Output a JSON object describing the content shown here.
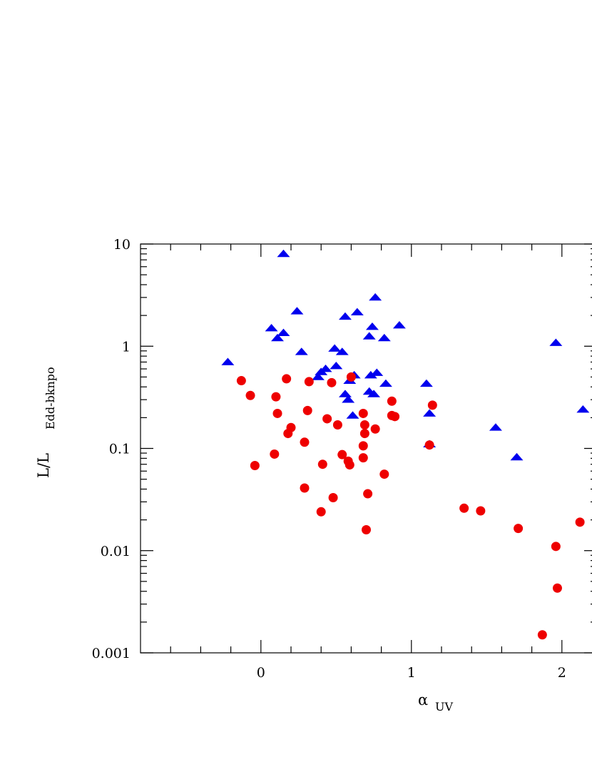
{
  "chart_data": {
    "type": "scatter",
    "xlabel": {
      "main": "α",
      "sub": "UV"
    },
    "ylabel": {
      "main": "L/L",
      "sub": "Edd-bknpo"
    },
    "xlim": [
      -0.8,
      2.2
    ],
    "ylim": [
      0.001,
      10
    ],
    "yscale": "log",
    "x_ticks": [
      0,
      1,
      2
    ],
    "x_tick_labels": [
      "0",
      "1",
      "2"
    ],
    "y_ticks": [
      0.001,
      0.01,
      0.1,
      1,
      10
    ],
    "y_tick_labels": [
      "0.001",
      "0.01",
      "0.1",
      "1",
      "10"
    ],
    "grid": false,
    "colors": {
      "series_triangles": "#0000ee",
      "series_circles": "#ee0000"
    },
    "series": [
      {
        "marker": "triangle",
        "color": "#0000ee",
        "points": [
          [
            0.15,
            8.0
          ],
          [
            -0.22,
            0.7
          ],
          [
            0.07,
            1.5
          ],
          [
            0.11,
            1.2
          ],
          [
            0.15,
            1.35
          ],
          [
            0.24,
            2.2
          ],
          [
            0.27,
            0.88
          ],
          [
            0.38,
            0.5
          ],
          [
            0.4,
            0.56
          ],
          [
            0.43,
            0.6
          ],
          [
            0.49,
            0.95
          ],
          [
            0.5,
            0.64
          ],
          [
            0.54,
            0.88
          ],
          [
            0.56,
            1.95
          ],
          [
            0.56,
            0.34
          ],
          [
            0.58,
            0.3
          ],
          [
            0.59,
            0.46
          ],
          [
            0.61,
            0.21
          ],
          [
            0.62,
            0.52
          ],
          [
            0.64,
            2.15
          ],
          [
            0.72,
            1.25
          ],
          [
            0.72,
            0.36
          ],
          [
            0.73,
            0.52
          ],
          [
            0.74,
            1.55
          ],
          [
            0.75,
            0.34
          ],
          [
            0.76,
            3.0
          ],
          [
            0.77,
            0.55
          ],
          [
            0.82,
            1.2
          ],
          [
            0.83,
            0.43
          ],
          [
            0.92,
            1.6
          ],
          [
            1.1,
            0.43
          ],
          [
            1.12,
            0.22
          ],
          [
            1.12,
            0.11
          ],
          [
            1.56,
            0.16
          ],
          [
            1.7,
            0.082
          ],
          [
            1.96,
            1.08
          ],
          [
            2.14,
            0.24
          ]
        ]
      },
      {
        "marker": "circle",
        "color": "#ee0000",
        "points": [
          [
            -0.13,
            0.46
          ],
          [
            -0.07,
            0.33
          ],
          [
            -0.04,
            0.068
          ],
          [
            0.09,
            0.088
          ],
          [
            0.1,
            0.32
          ],
          [
            0.11,
            0.22
          ],
          [
            0.17,
            0.48
          ],
          [
            0.18,
            0.14
          ],
          [
            0.2,
            0.16
          ],
          [
            0.29,
            0.115
          ],
          [
            0.29,
            0.041
          ],
          [
            0.31,
            0.235
          ],
          [
            0.32,
            0.45
          ],
          [
            0.4,
            0.024
          ],
          [
            0.41,
            0.07
          ],
          [
            0.44,
            0.195
          ],
          [
            0.47,
            0.44
          ],
          [
            0.48,
            0.033
          ],
          [
            0.51,
            0.17
          ],
          [
            0.54,
            0.087
          ],
          [
            0.58,
            0.075
          ],
          [
            0.59,
            0.069
          ],
          [
            0.6,
            0.5
          ],
          [
            0.68,
            0.22
          ],
          [
            0.68,
            0.106
          ],
          [
            0.68,
            0.081
          ],
          [
            0.69,
            0.17
          ],
          [
            0.69,
            0.14
          ],
          [
            0.7,
            0.016
          ],
          [
            0.71,
            0.036
          ],
          [
            0.76,
            0.155
          ],
          [
            0.82,
            0.056
          ],
          [
            0.87,
            0.29
          ],
          [
            0.87,
            0.21
          ],
          [
            0.89,
            0.205
          ],
          [
            1.12,
            0.108
          ],
          [
            1.14,
            0.265
          ],
          [
            1.35,
            0.026
          ],
          [
            1.46,
            0.0245
          ],
          [
            1.71,
            0.0165
          ],
          [
            1.87,
            0.0015
          ],
          [
            1.96,
            0.011
          ],
          [
            1.97,
            0.0043
          ],
          [
            2.12,
            0.019
          ]
        ]
      }
    ]
  }
}
